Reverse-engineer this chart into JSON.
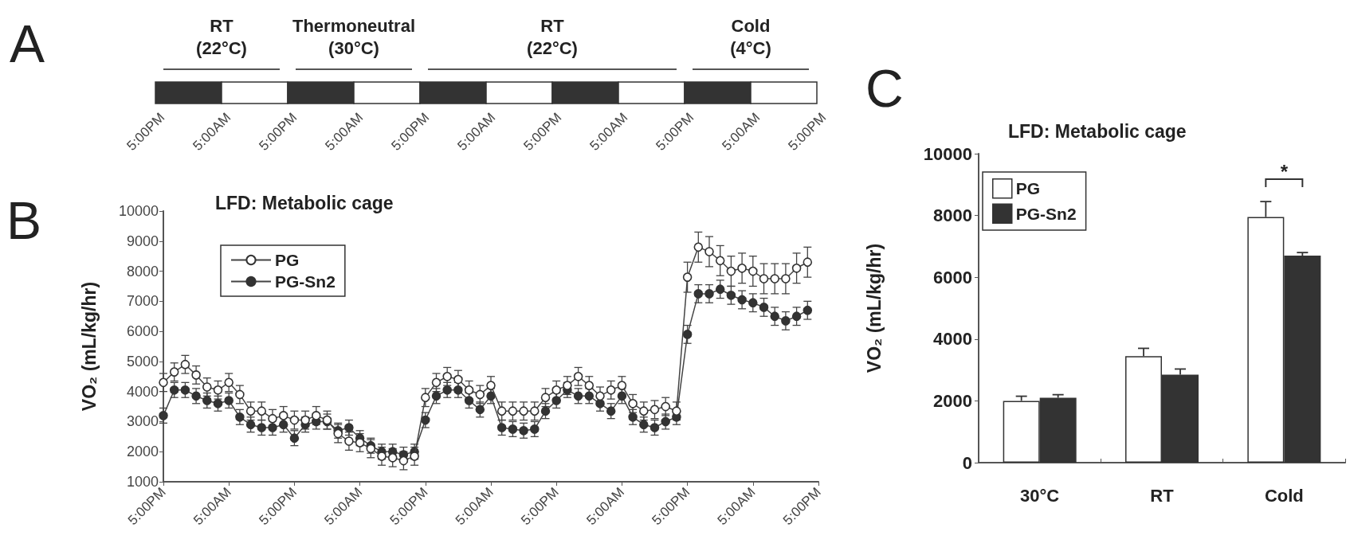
{
  "chart_data": [
    {
      "type": "other",
      "annotations": [
        "A",
        "RT (22°C)",
        "Thermoneutral (30°C)",
        "RT (22°C)",
        "Cold (4°C)"
      ],
      "categories": [
        "5:00PM",
        "5:00AM",
        "5:00PM",
        "5:00AM",
        "5:00PM",
        "5:00AM",
        "5:00PM",
        "5:00AM",
        "5:00PM",
        "5:00AM",
        "5:00PM"
      ]
    },
    {
      "type": "line",
      "title": "LFD: Metabolic cage",
      "ylabel": "VO₂ (mL/kg/hr)",
      "annotations": [
        "B"
      ],
      "categories": [
        "5:00PM",
        null,
        null,
        null,
        null,
        null,
        "5:00AM",
        null,
        null,
        null,
        null,
        null,
        "5:00PM",
        null,
        null,
        null,
        null,
        null,
        "5:00AM",
        null,
        null,
        null,
        null,
        null,
        "5:00PM",
        null,
        null,
        null,
        null,
        null,
        "5:00AM",
        null,
        null,
        null,
        null,
        null,
        "5:00PM",
        null,
        null,
        null,
        null,
        null,
        "5:00AM",
        null,
        null,
        null,
        null,
        null,
        "5:00PM",
        null,
        null,
        null,
        null,
        null,
        "5:00AM",
        null,
        null,
        null,
        null,
        null,
        "5:00PM"
      ],
      "series": [
        {
          "name": "PG",
          "color": "#ffffff",
          "values": [
            4300,
            4650,
            4900,
            4550,
            4150,
            4050,
            4300,
            3900,
            3350,
            3350,
            3100,
            3200,
            3050,
            3050,
            3200,
            3050,
            2600,
            2350,
            2300,
            2100,
            1850,
            1800,
            1700,
            1850,
            3800,
            4300,
            4500,
            4400,
            4050,
            3900,
            4200,
            3350,
            3350,
            3350,
            3350,
            3800,
            4050,
            4200,
            4500,
            4200,
            3850,
            4050,
            4200,
            3600,
            3350,
            3400,
            3500,
            3350,
            7800,
            8800,
            8650,
            8350,
            8000,
            8100,
            8000,
            7750,
            7750,
            7750,
            8100,
            8300,
            null
          ],
          "errors": [
            300,
            300,
            300,
            300,
            300,
            300,
            300,
            300,
            300,
            300,
            300,
            300,
            300,
            300,
            300,
            300,
            300,
            300,
            300,
            300,
            300,
            300,
            300,
            300,
            300,
            300,
            300,
            300,
            300,
            300,
            300,
            300,
            300,
            300,
            300,
            300,
            300,
            300,
            300,
            300,
            300,
            300,
            300,
            300,
            300,
            300,
            300,
            300,
            500,
            500,
            500,
            500,
            500,
            500,
            500,
            500,
            500,
            500,
            500,
            500,
            null
          ]
        },
        {
          "name": "PG-Sn2",
          "color": "#333333",
          "values": [
            3200,
            4050,
            4050,
            3850,
            3700,
            3600,
            3700,
            3150,
            2900,
            2800,
            2800,
            2900,
            2450,
            2900,
            3000,
            3000,
            2700,
            2800,
            2450,
            2200,
            2000,
            2000,
            1900,
            2000,
            3050,
            3850,
            4050,
            4050,
            3700,
            3400,
            3850,
            2800,
            2750,
            2700,
            2750,
            3350,
            3700,
            4050,
            3850,
            3850,
            3600,
            3350,
            3850,
            3150,
            2900,
            2800,
            3000,
            3150,
            5900,
            7250,
            7250,
            7400,
            7200,
            7050,
            6950,
            6800,
            6500,
            6350,
            6500,
            6700,
            null
          ],
          "errors": [
            250,
            250,
            250,
            250,
            250,
            250,
            250,
            250,
            250,
            250,
            250,
            250,
            250,
            250,
            250,
            250,
            250,
            250,
            250,
            250,
            250,
            250,
            250,
            250,
            250,
            250,
            250,
            250,
            250,
            250,
            250,
            250,
            250,
            250,
            250,
            250,
            250,
            250,
            250,
            250,
            250,
            250,
            250,
            250,
            250,
            250,
            250,
            250,
            300,
            300,
            300,
            300,
            300,
            300,
            300,
            300,
            300,
            300,
            300,
            300,
            null
          ]
        }
      ],
      "ylim": [
        1000,
        10000
      ],
      "yticks": [
        1000,
        2000,
        3000,
        4000,
        5000,
        6000,
        7000,
        8000,
        9000,
        10000
      ],
      "grid": false,
      "legend": "top left",
      "marker": "circle",
      "line_style": "solid"
    },
    {
      "type": "bar",
      "title": "LFD: Metabolic cage",
      "ylabel": "VO₂ (mL/kg/hr)",
      "annotations": [
        "C",
        "*"
      ],
      "categories": [
        "30°C",
        "RT",
        "Cold"
      ],
      "series": [
        {
          "name": "PG",
          "color": "#ffffff",
          "values": [
            2000,
            3450,
            7950
          ],
          "errors": [
            150,
            250,
            500
          ]
        },
        {
          "name": "PG-Sn2",
          "color": "#333333",
          "values": [
            2100,
            2850,
            6700
          ],
          "errors": [
            100,
            180,
            100
          ]
        }
      ],
      "ylim": [
        0,
        10000
      ],
      "yticks": [
        0,
        2000,
        4000,
        6000,
        8000,
        10000
      ],
      "grid": false,
      "legend": "top left"
    }
  ]
}
